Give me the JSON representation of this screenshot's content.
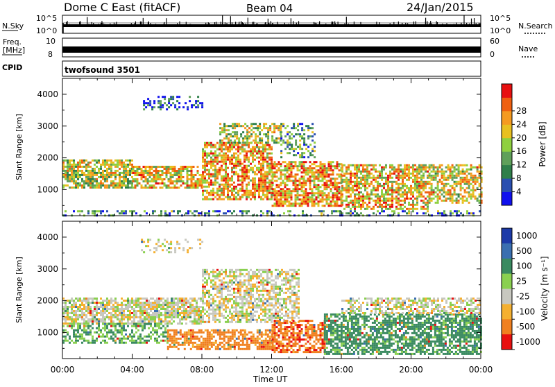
{
  "header": {
    "station": "Dome C East (fitACF)",
    "beam": "Beam 04",
    "date": "24/Jan/2015"
  },
  "nsky_panel": {
    "left_label": "N.Sky",
    "left_tick_top": "10^5",
    "left_tick_bottom": "10^0",
    "right_label": "N.Search",
    "right_tick_top": "10^5",
    "right_tick_bottom": "10^0"
  },
  "freq_panel": {
    "left_label_1": "Freq.",
    "left_label_2": "[MHz]",
    "left_tick_top": "10",
    "left_tick_bottom": "8",
    "right_label": "Nave",
    "right_tick_top": "60",
    "right_tick_bottom": "0"
  },
  "cpid_panel": {
    "label": "CPID",
    "program": "twofsound 3501"
  },
  "axes": {
    "ylabel": "Slant Range [km]",
    "xlabel": "Time UT",
    "yticks": [
      "1000",
      "2000",
      "3000",
      "4000"
    ],
    "xticks": [
      "00:00",
      "04:00",
      "08:00",
      "12:00",
      "16:00",
      "20:00",
      "00:00"
    ]
  },
  "power_colorbar": {
    "label": "Power [dB]",
    "ticks": [
      "4",
      "8",
      "12",
      "16",
      "20",
      "24",
      "28"
    ],
    "colors": [
      "#1010ee",
      "#2a4fb0",
      "#2f7f4a",
      "#5fa05a",
      "#8fd040",
      "#e8c020",
      "#f59a20",
      "#ef6010",
      "#e81010"
    ]
  },
  "velocity_colorbar": {
    "label": "Velocity  [m s⁻¹]",
    "ticks": [
      "1000",
      "500",
      "100",
      "25",
      "-25",
      "-100",
      "-500",
      "-1000"
    ],
    "colors": [
      "#1c3aa8",
      "#3a6fb0",
      "#3a8a60",
      "#8ad050",
      "#c8c8c0",
      "#f5b030",
      "#f08020",
      "#e81010"
    ]
  },
  "chart_data": [
    {
      "type": "heatmap",
      "title": "Power",
      "xlabel": "Time UT",
      "ylabel": "Slant Range [km]",
      "xlim": [
        "00:00",
        "24:00"
      ],
      "ylim": [
        180,
        4500
      ],
      "clim": [
        0,
        30
      ],
      "blobs": [
        {
          "t": [
            0.0,
            4.0
          ],
          "r": [
            1050,
            1950
          ],
          "density": 0.75,
          "mean_db": 17
        },
        {
          "t": [
            4.0,
            8.0
          ],
          "r": [
            1050,
            1750
          ],
          "density": 0.7,
          "mean_db": 20
        },
        {
          "t": [
            8.0,
            12.0
          ],
          "r": [
            700,
            2500
          ],
          "density": 0.7,
          "mean_db": 21
        },
        {
          "t": [
            9.0,
            12.5
          ],
          "r": [
            2500,
            3100
          ],
          "density": 0.55,
          "mean_db": 16
        },
        {
          "t": [
            12.0,
            16.0
          ],
          "r": [
            500,
            1900
          ],
          "density": 0.7,
          "mean_db": 22
        },
        {
          "t": [
            12.5,
            14.5
          ],
          "r": [
            2000,
            3100
          ],
          "density": 0.4,
          "mean_db": 12
        },
        {
          "t": [
            16.0,
            21.0
          ],
          "r": [
            400,
            1800
          ],
          "density": 0.65,
          "mean_db": 20
        },
        {
          "t": [
            21.0,
            24.0
          ],
          "r": [
            600,
            1800
          ],
          "density": 0.6,
          "mean_db": 19
        },
        {
          "t": [
            0.0,
            24.0
          ],
          "r": [
            200,
            350
          ],
          "density": 0.35,
          "mean_db": 10
        },
        {
          "t": [
            4.5,
            8.0
          ],
          "r": [
            3500,
            3950
          ],
          "density": 0.3,
          "mean_db": 6
        }
      ]
    },
    {
      "type": "heatmap",
      "title": "Velocity",
      "xlabel": "Time UT",
      "ylabel": "Slant Range [km]",
      "xlim": [
        "00:00",
        "24:00"
      ],
      "ylim": [
        180,
        4500
      ],
      "clim": [
        -1000,
        1000
      ],
      "blobs": [
        {
          "t": [
            0.0,
            8.0
          ],
          "r": [
            1300,
            2100
          ],
          "density": 0.75,
          "mean_v": 0
        },
        {
          "t": [
            0.0,
            6.0
          ],
          "r": [
            700,
            1300
          ],
          "density": 0.5,
          "mean_v": 60
        },
        {
          "t": [
            6.0,
            12.0
          ],
          "r": [
            500,
            1100
          ],
          "density": 0.7,
          "mean_v": -150
        },
        {
          "t": [
            8.0,
            13.5
          ],
          "r": [
            1300,
            3000
          ],
          "density": 0.6,
          "mean_v": 0
        },
        {
          "t": [
            12.0,
            15.0
          ],
          "r": [
            400,
            1400
          ],
          "density": 0.65,
          "mean_v": -200
        },
        {
          "t": [
            15.0,
            24.0
          ],
          "r": [
            300,
            1600
          ],
          "density": 0.7,
          "mean_v": 120
        },
        {
          "t": [
            16.0,
            24.0
          ],
          "r": [
            1600,
            2100
          ],
          "density": 0.55,
          "mean_v": 0
        },
        {
          "t": [
            4.5,
            8.0
          ],
          "r": [
            3500,
            3950
          ],
          "density": 0.3,
          "mean_v": 0
        }
      ]
    }
  ]
}
